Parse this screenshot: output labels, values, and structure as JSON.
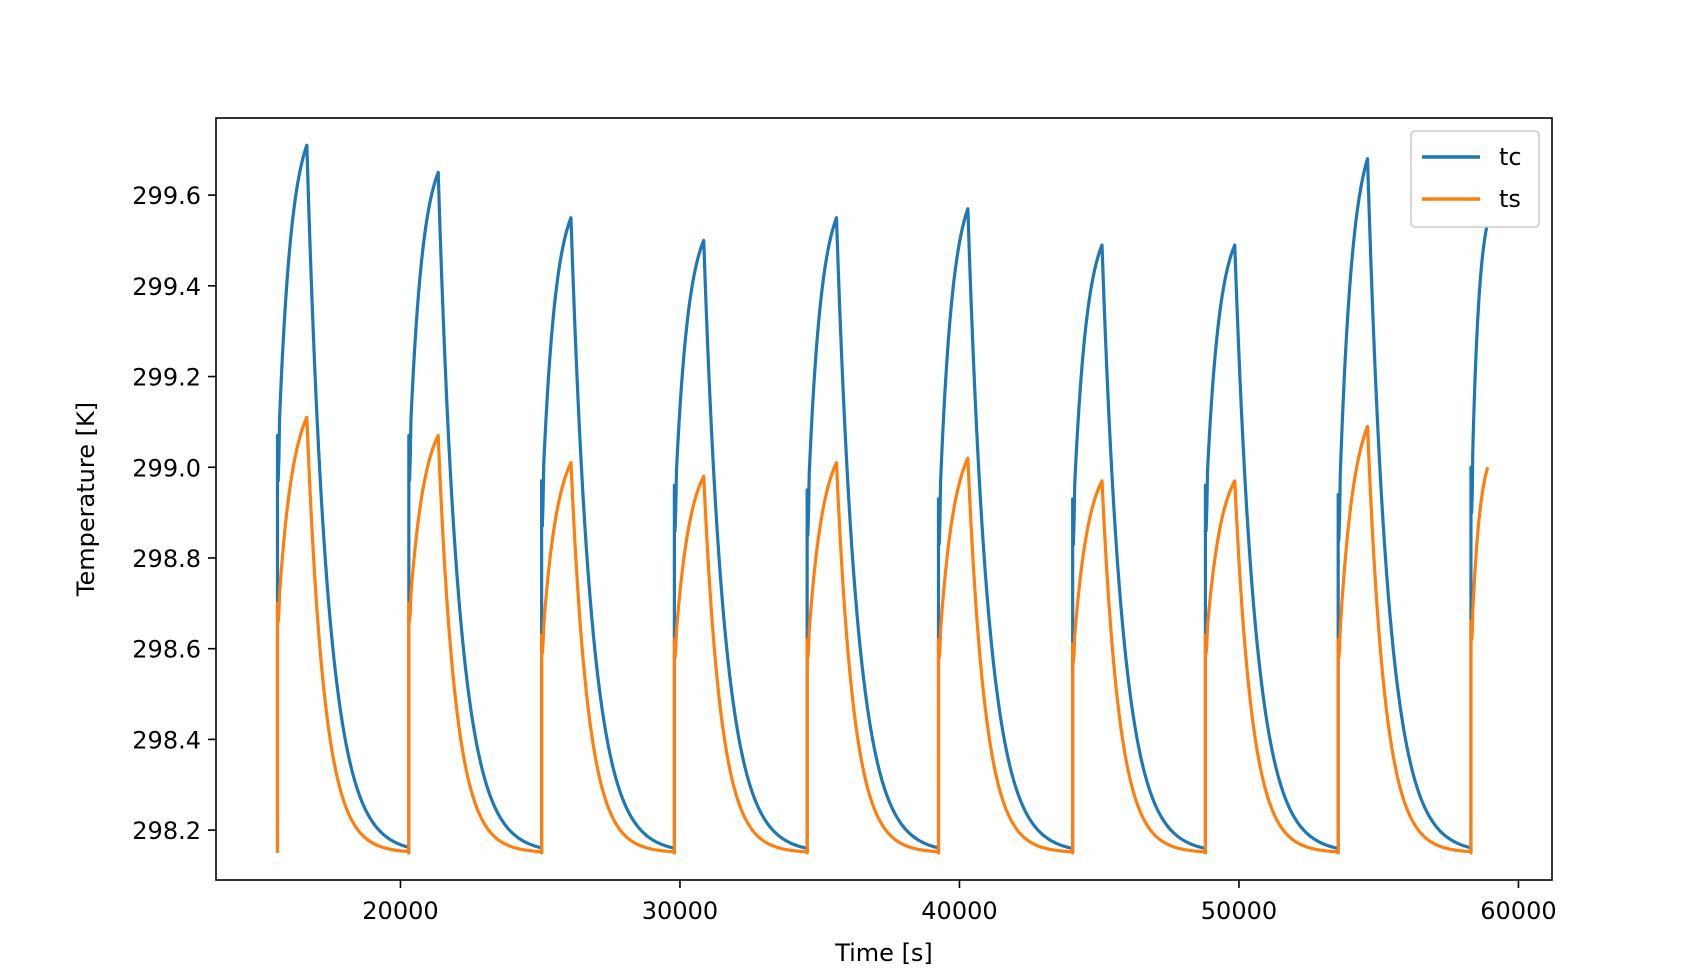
{
  "chart_data": {
    "type": "line",
    "title": "",
    "xlabel": "Time [s]",
    "ylabel": "Temperature [K]",
    "xlim": [
      13400,
      61200
    ],
    "ylim": [
      298.09,
      299.77
    ],
    "xticks": [
      20000,
      30000,
      40000,
      50000,
      60000
    ],
    "xtick_labels": [
      "20000",
      "30000",
      "40000",
      "50000",
      "60000"
    ],
    "yticks": [
      298.2,
      298.4,
      298.6,
      298.8,
      299.0,
      299.2,
      299.4,
      299.6
    ],
    "ytick_labels": [
      "298.2",
      "298.4",
      "298.6",
      "298.8",
      "299.0",
      "299.2",
      "299.4",
      "299.6"
    ],
    "grid": false,
    "legend_position": "top-right",
    "base_temperature": 298.15,
    "cycles": [
      {
        "start": 15600,
        "end": 16650,
        "tc_start": 299.07,
        "tc_peak": 299.71,
        "ts_start": 298.7,
        "ts_peak": 299.11
      },
      {
        "start": 20300,
        "end": 21350,
        "tc_start": 299.07,
        "tc_peak": 299.65,
        "ts_start": 298.7,
        "ts_peak": 299.07
      },
      {
        "start": 25050,
        "end": 26100,
        "tc_start": 298.97,
        "tc_peak": 299.55,
        "ts_start": 298.63,
        "ts_peak": 299.01
      },
      {
        "start": 29800,
        "end": 30850,
        "tc_start": 298.96,
        "tc_peak": 299.5,
        "ts_start": 298.62,
        "ts_peak": 298.98
      },
      {
        "start": 34550,
        "end": 35600,
        "tc_start": 298.95,
        "tc_peak": 299.55,
        "ts_start": 298.62,
        "ts_peak": 299.01
      },
      {
        "start": 39250,
        "end": 40300,
        "tc_start": 298.93,
        "tc_peak": 299.57,
        "ts_start": 298.62,
        "ts_peak": 299.02
      },
      {
        "start": 44050,
        "end": 45100,
        "tc_start": 298.93,
        "tc_peak": 299.49,
        "ts_start": 298.61,
        "ts_peak": 298.97
      },
      {
        "start": 48800,
        "end": 49850,
        "tc_start": 298.96,
        "tc_peak": 299.49,
        "ts_start": 298.63,
        "ts_peak": 298.97
      },
      {
        "start": 53550,
        "end": 54600,
        "tc_start": 298.94,
        "tc_peak": 299.68,
        "ts_start": 298.62,
        "ts_peak": 299.09
      },
      {
        "start": 58300,
        "end": 58900,
        "tc_start": 299.0,
        "tc_peak": 299.54,
        "ts_start": 298.66,
        "ts_peak": 299.0
      }
    ],
    "series": [
      {
        "name": "tc",
        "color": "#1f77b4"
      },
      {
        "name": "ts",
        "color": "#ff7f0e"
      }
    ]
  }
}
